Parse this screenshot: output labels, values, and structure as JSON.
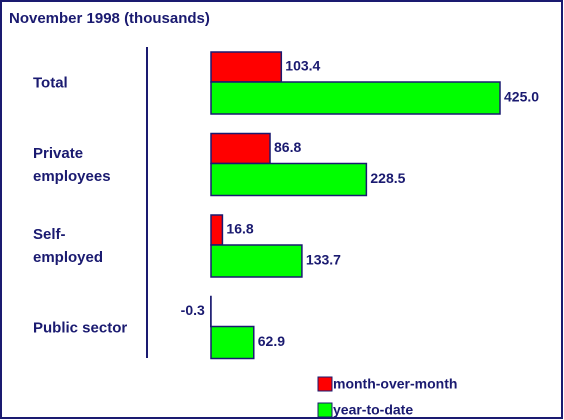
{
  "chart_data": {
    "type": "bar",
    "orientation": "horizontal",
    "title": "November 1998 (thousands)",
    "categories": [
      "Total",
      "Private employees",
      "Self-employed",
      "Public sector"
    ],
    "series": [
      {
        "name": "month-over-month",
        "color": "#ff0000",
        "values": [
          103.4,
          86.8,
          16.8,
          -0.3
        ],
        "value_labels": [
          "103.4",
          "86.8",
          "16.8",
          "-0.3"
        ]
      },
      {
        "name": "year-to-date",
        "color": "#00ff00",
        "values": [
          425,
          228.5,
          133.7,
          62.9
        ],
        "value_labels": [
          "425.0",
          "228.5",
          "133.7",
          "62.9"
        ]
      }
    ],
    "legend": "bottom-right"
  }
}
